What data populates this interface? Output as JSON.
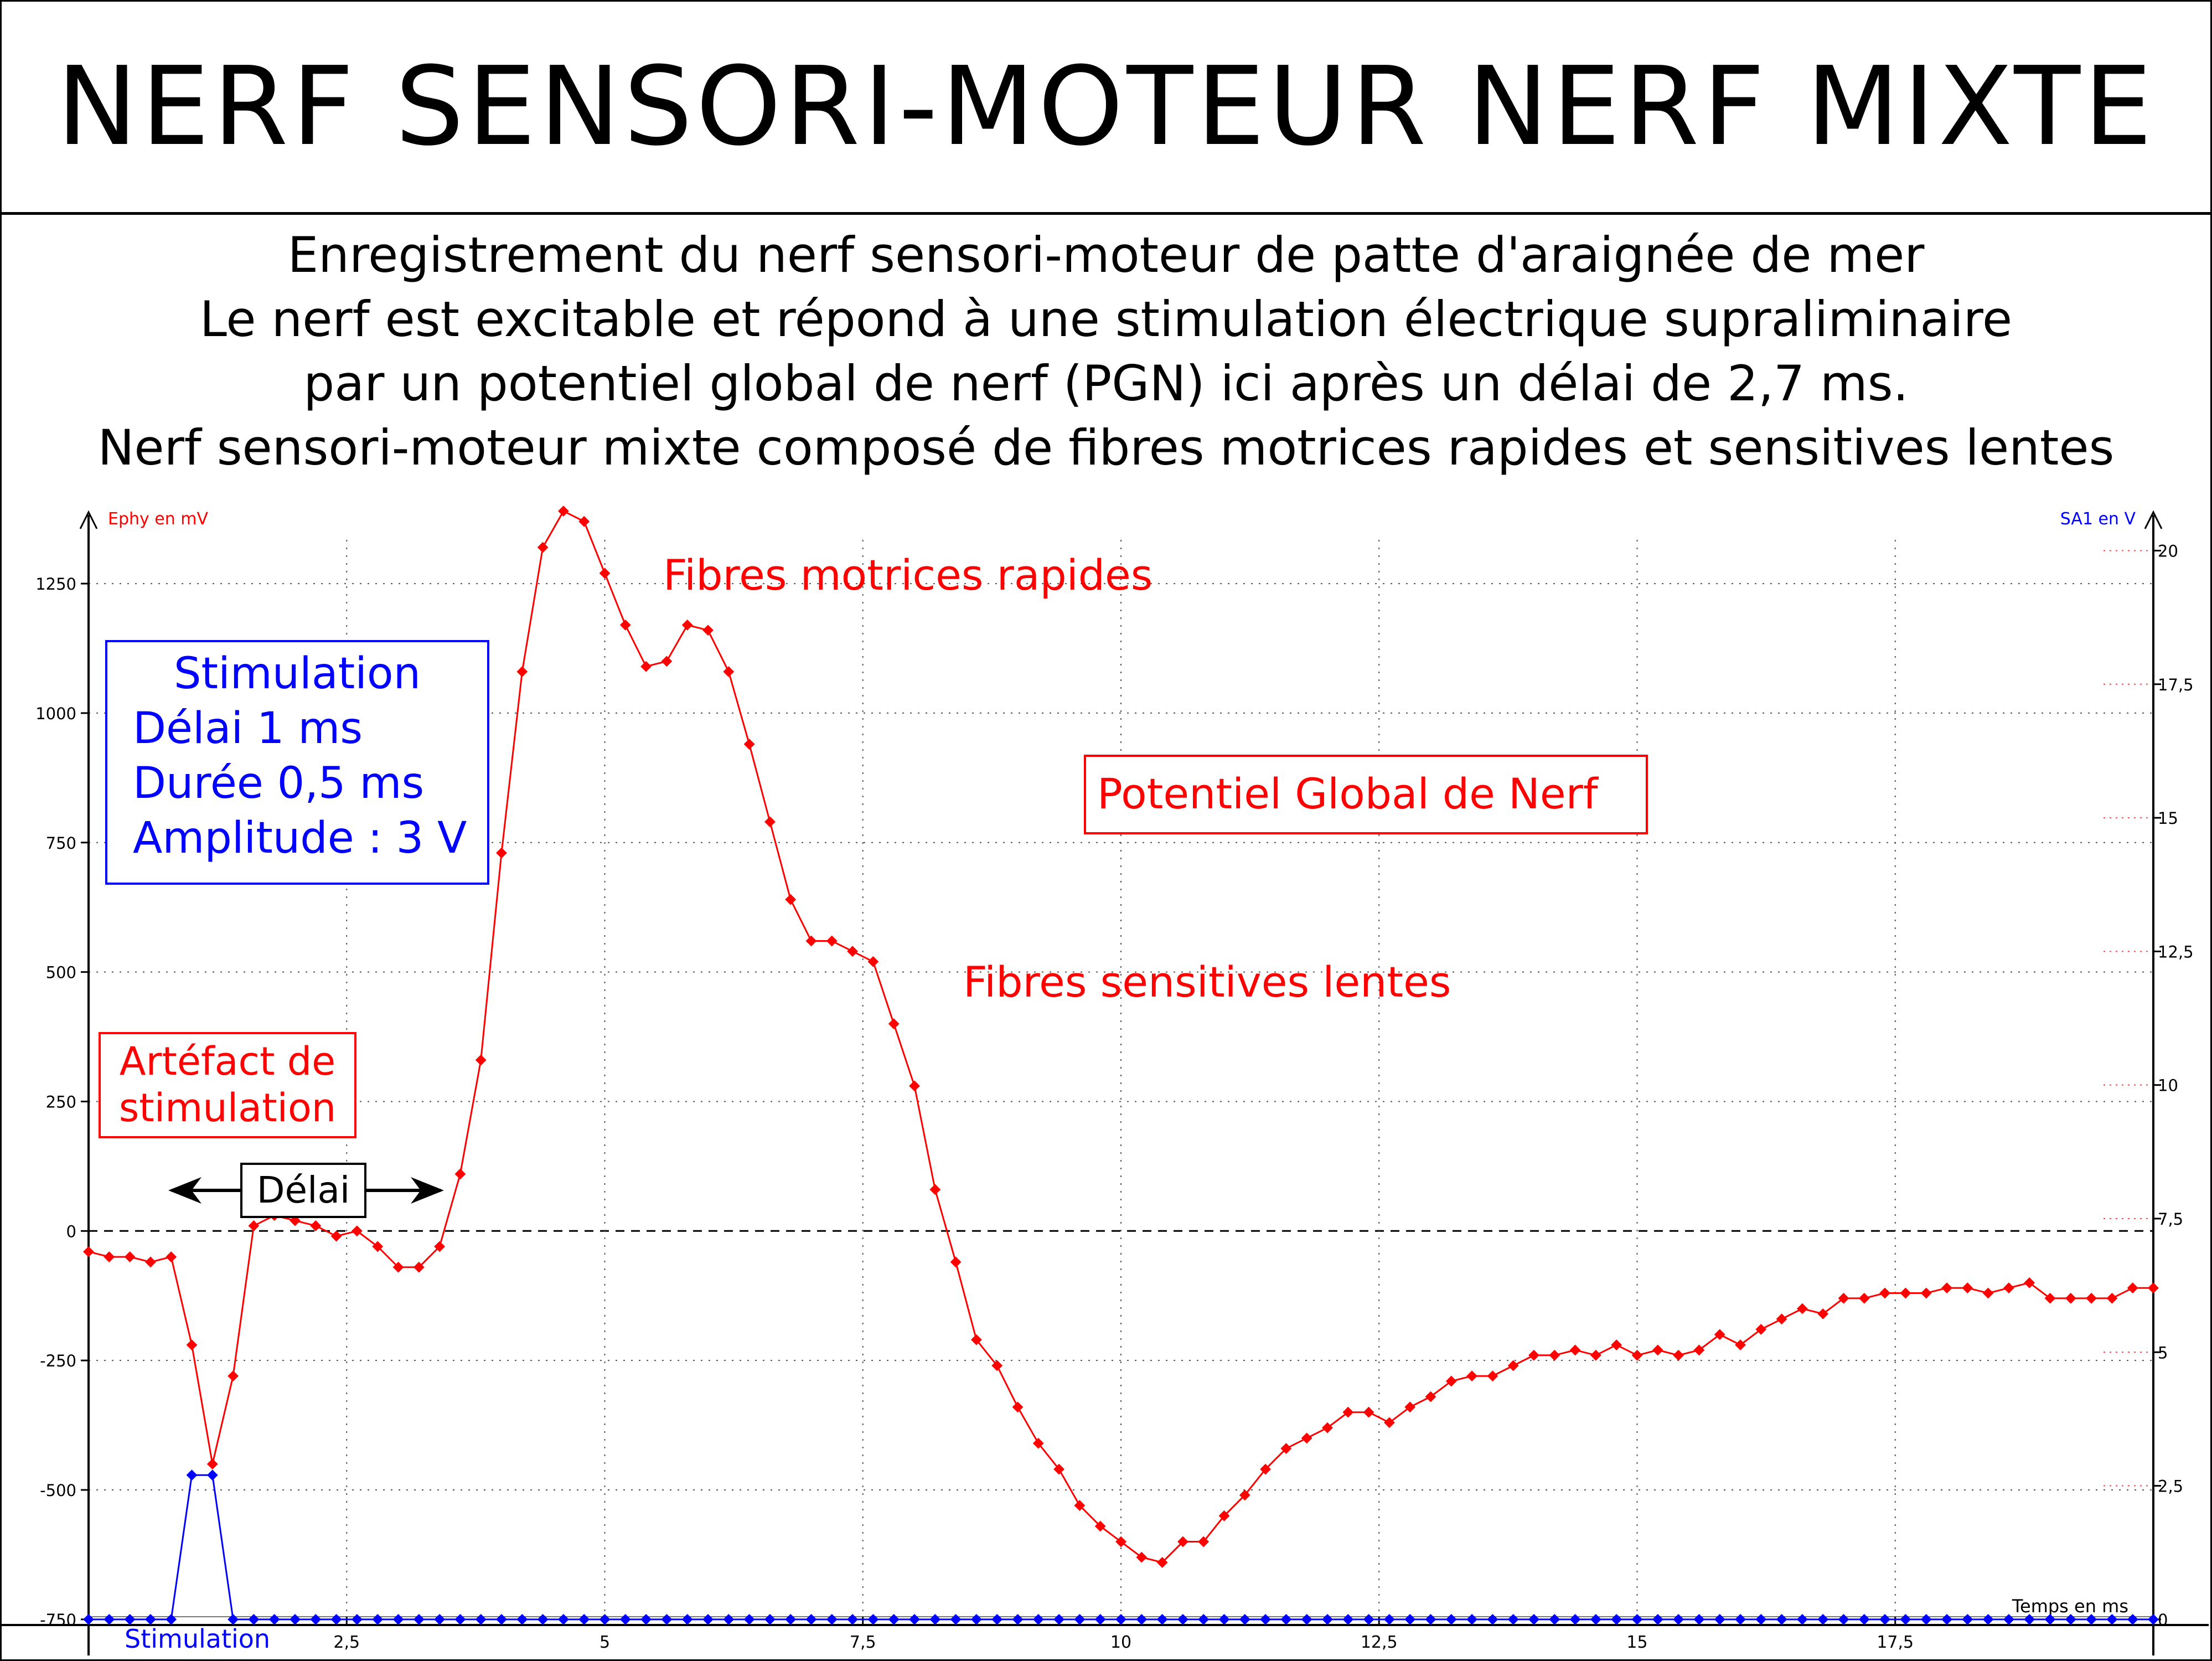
{
  "header": {
    "title": "NERF SENSORI-MOTEUR NERF MIXTE"
  },
  "description": {
    "lines": [
      "Enregistrement du nerf sensori-moteur de patte d'araignée de mer",
      "Le nerf est excitable et répond à une stimulation électrique supraliminaire",
      "par un potentiel global de nerf (PGN) ici après un délai de 2,7 ms.",
      "Nerf sensori-moteur mixte composé de fibres motrices rapides et sensitives lentes"
    ]
  },
  "annotations": {
    "stimulation_box": [
      "Stimulation",
      "Délai 1 ms",
      "Durée 0,5 ms",
      "Amplitude : 3 V"
    ],
    "artefact_box": [
      "Artéfact de",
      "stimulation"
    ],
    "delai_label": "Délai",
    "fibres_motrices": "Fibres motrices rapides",
    "pgn_label": "Potentiel Global de Nerf",
    "fibres_sensitives": "Fibres sensitives lentes",
    "stimulation_trace_label": "Stimulation"
  },
  "colors": {
    "ephy": "#ff0000",
    "stim": "#0000ff",
    "axis": "#000000",
    "grid": "#555555"
  },
  "chart_data": {
    "type": "line",
    "title": "",
    "xlabel": "Temps en ms",
    "ylabel_left": "Ephy en mV",
    "ylabel_right": "SA1 en V",
    "xlim": [
      0,
      20
    ],
    "ylim_left": [
      -750,
      1450
    ],
    "ylim_right": [
      0,
      21
    ],
    "x_ticks": [
      2.5,
      5,
      7.5,
      10,
      12.5,
      15,
      17.5
    ],
    "x_tick_labels": [
      "2,5",
      "5",
      "7,5",
      "10",
      "12,5",
      "15",
      "17,5"
    ],
    "y_left_ticks": [
      1250,
      1000,
      750,
      500,
      250,
      0,
      -250,
      -500,
      -750
    ],
    "y_left_tick_labels": [
      "1250",
      "1000",
      "750",
      "500",
      "250",
      "0",
      "-250",
      "-500",
      "-750"
    ],
    "y_right_ticks": [
      20,
      17.5,
      15,
      12.5,
      10,
      7.5,
      5,
      2.5,
      0
    ],
    "y_right_tick_labels": [
      "20",
      "17,5",
      "15",
      "12,5",
      "10",
      "7,5",
      "5",
      "2,5",
      "0"
    ],
    "grid": true,
    "series": [
      {
        "name": "Ephy en mV",
        "axis": "left",
        "x": [
          0,
          0.2,
          0.4,
          0.6,
          0.8,
          1.0,
          1.2,
          1.4,
          1.6,
          1.8,
          2.0,
          2.2,
          2.4,
          2.6,
          2.8,
          3.0,
          3.2,
          3.4,
          3.6,
          3.8,
          4.0,
          4.2,
          4.4,
          4.6,
          4.8,
          5.0,
          5.2,
          5.4,
          5.6,
          5.8,
          6.0,
          6.2,
          6.4,
          6.6,
          6.8,
          7.0,
          7.2,
          7.4,
          7.6,
          7.8,
          8.0,
          8.2,
          8.4,
          8.6,
          8.8,
          9.0,
          9.2,
          9.4,
          9.6,
          9.8,
          10.0,
          10.2,
          10.4,
          10.6,
          10.8,
          11.0,
          11.2,
          11.4,
          11.6,
          11.8,
          12.0,
          12.2,
          12.4,
          12.6,
          12.8,
          13.0,
          13.2,
          13.4,
          13.6,
          13.8,
          14.0,
          14.2,
          14.4,
          14.6,
          14.8,
          15.0,
          15.2,
          15.4,
          15.6,
          15.8,
          16.0,
          16.2,
          16.4,
          16.6,
          16.8,
          17.0,
          17.2,
          17.4,
          17.6,
          17.8,
          18.0,
          18.2,
          18.4,
          18.6,
          18.8,
          19.0,
          19.2,
          19.4,
          19.6,
          19.8,
          20.0
        ],
        "values": [
          -40,
          -50,
          -50,
          -60,
          -50,
          -220,
          -450,
          -280,
          10,
          30,
          20,
          10,
          -10,
          0,
          -30,
          -70,
          -70,
          -30,
          110,
          330,
          730,
          1080,
          1320,
          1390,
          1370,
          1270,
          1170,
          1090,
          1100,
          1170,
          1160,
          1080,
          940,
          790,
          640,
          560,
          560,
          540,
          520,
          400,
          280,
          80,
          -60,
          -210,
          -260,
          -340,
          -410,
          -460,
          -530,
          -570,
          -600,
          -630,
          -640,
          -600,
          -600,
          -550,
          -510,
          -460,
          -420,
          -400,
          -380,
          -350,
          -350,
          -370,
          -340,
          -320,
          -290,
          -280,
          -280,
          -260,
          -240,
          -240,
          -230,
          -240,
          -220,
          -240,
          -230,
          -240,
          -230,
          -200,
          -220,
          -190,
          -170,
          -150,
          -160,
          -130,
          -130,
          -120,
          -120,
          -120,
          -110,
          -110,
          -120,
          -110,
          -100,
          -130,
          -130,
          -130,
          -130,
          -110,
          -110
        ]
      },
      {
        "name": "SA1 en V",
        "axis": "right",
        "x": [
          0,
          0.2,
          0.4,
          0.6,
          0.8,
          1.0,
          1.2,
          1.4,
          1.6,
          20.0
        ],
        "values": [
          0,
          0,
          0,
          0,
          0,
          2.7,
          2.7,
          0,
          0,
          0
        ]
      }
    ]
  }
}
